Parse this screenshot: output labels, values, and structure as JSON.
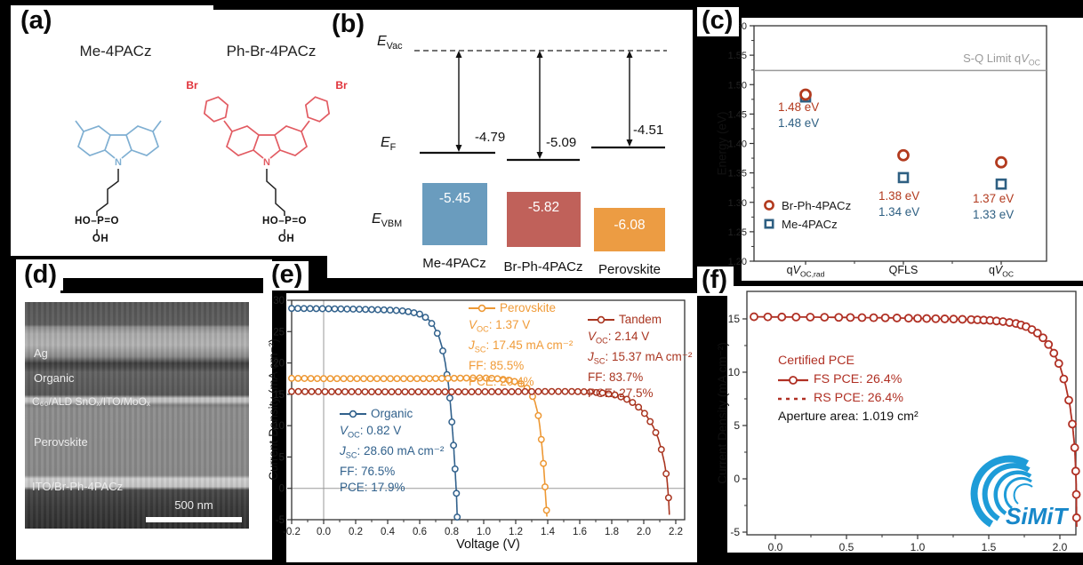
{
  "panel_labels": {
    "a": "(a)",
    "b": "(b)",
    "c": "(c)",
    "d": "(d)",
    "e": "(e)",
    "f": "(f)"
  },
  "panel_a": {
    "molecule_1_name": "Me-4PACz",
    "molecule_2_name": "Ph-Br-4PACz",
    "molecule_1_color": "#7FAFD2",
    "molecule_2_color": "#E25B62",
    "br_label": "Br",
    "n_label": "N",
    "phosphonic_top": "HO–P=O",
    "phosphonic_bottom": "OH"
  },
  "panel_b": {
    "evac_label": {
      "sym": "E",
      "sub": "Vac"
    },
    "ef_label": {
      "sym": "E",
      "sub": "F"
    },
    "evbm_label": {
      "sym": "E",
      "sub": "VBM"
    },
    "levels": [
      {
        "name": "Me-4PACz",
        "ef": "-4.79",
        "evbm": "-5.45",
        "color": "#6A9CBE"
      },
      {
        "name": "Br-Ph-4PACz",
        "ef": "-5.09",
        "evbm": "-5.82",
        "color": "#C0615A"
      },
      {
        "name": "Perovskite",
        "ef": "-4.51",
        "evbm": "-6.08",
        "color": "#EC9C43"
      }
    ]
  },
  "panel_d": {
    "layer_labels": [
      "Ag",
      "Organic",
      "C₆₀/ALD SnOₓ/ITO/MoOₓ",
      "Perovskite",
      "ITO/Br-Ph-4PACz"
    ],
    "scale_bar_label": "500 nm"
  },
  "chart_data": [
    {
      "id": "c",
      "type": "scatter",
      "ylabel": "Energy (eV)",
      "ylim": [
        1.2,
        1.6
      ],
      "yticks": [
        1.2,
        1.25,
        1.3,
        1.35,
        1.4,
        1.45,
        1.5,
        1.55,
        1.6
      ],
      "categories": [
        {
          "pre": "q",
          "sym": "V",
          "sub": "OC,rad"
        },
        {
          "pre": "QFLS"
        },
        {
          "pre": "q",
          "sym": "V",
          "sub": "OC"
        }
      ],
      "ref_line": {
        "value": 1.524,
        "color": "#9A9A9A",
        "label": {
          "pre": "S-Q Limit q",
          "sym": "V",
          "sub": "OC"
        }
      },
      "series": [
        {
          "name": "Me-4PACz",
          "marker": "square",
          "color": "#2E5F82",
          "values": [
            1.48,
            1.34,
            1.33
          ],
          "plot_values": [
            1.479,
            1.342,
            1.331
          ]
        },
        {
          "name": "Br-Ph-4PACz",
          "marker": "circle",
          "color": "#B23A1E",
          "values": [
            1.48,
            1.38,
            1.37
          ],
          "plot_values": [
            1.483,
            1.38,
            1.368
          ]
        }
      ],
      "annotations": [
        {
          "red": "1.48 eV",
          "blue": "1.48 eV"
        },
        {
          "red": "1.38 eV",
          "blue": "1.34 eV"
        },
        {
          "red": "1.37 eV",
          "blue": "1.33 eV"
        }
      ],
      "legend_position": "lower left",
      "grid": false
    },
    {
      "id": "e",
      "type": "line",
      "xlabel": "Voltage (V)",
      "ylabel": "Current Density (mA cm⁻²)",
      "xlim": [
        -0.2,
        2.2
      ],
      "ylim": [
        -5,
        30
      ],
      "xticks": [
        -0.2,
        0.0,
        0.2,
        0.4,
        0.6,
        0.8,
        1.0,
        1.2,
        1.4,
        1.6,
        1.8,
        2.0,
        2.2
      ],
      "yticks": [
        -5,
        0,
        5,
        10,
        15,
        20,
        25,
        30
      ],
      "series": [
        {
          "name": "Organic",
          "color": "#31618C",
          "stats": [
            {
              "sym": "V",
              "sub": "OC",
              "rest": ": 0.82 V"
            },
            {
              "sym": "J",
              "sub": "SC",
              "rest": ": 28.60 mA cm⁻²"
            },
            {
              "rest": "FF: 76.5%"
            },
            {
              "rest": "PCE: 17.9%"
            }
          ],
          "points": [
            [
              -0.2,
              28.7
            ],
            [
              -0.1,
              28.68
            ],
            [
              0,
              28.65
            ],
            [
              0.1,
              28.62
            ],
            [
              0.2,
              28.58
            ],
            [
              0.3,
              28.52
            ],
            [
              0.4,
              28.45
            ],
            [
              0.5,
              28.3
            ],
            [
              0.55,
              28.1
            ],
            [
              0.6,
              27.8
            ],
            [
              0.63,
              27.4
            ],
            [
              0.66,
              26.8
            ],
            [
              0.69,
              25.8
            ],
            [
              0.72,
              24.2
            ],
            [
              0.74,
              22.5
            ],
            [
              0.76,
              20.0
            ],
            [
              0.78,
              16.5
            ],
            [
              0.79,
              14.0
            ],
            [
              0.8,
              11.0
            ],
            [
              0.81,
              7.5
            ],
            [
              0.82,
              3.5
            ],
            [
              0.83,
              -1.0
            ],
            [
              0.835,
              -5.0
            ]
          ]
        },
        {
          "name": "Perovskite",
          "color": "#ED9834",
          "stats": [
            {
              "sym": "V",
              "sub": "OC",
              "rest": ": 1.37 V"
            },
            {
              "sym": "J",
              "sub": "SC",
              "rest": ": 17.45 mA cm⁻²"
            },
            {
              "rest": "FF: 85.5%"
            },
            {
              "rest": "PCE: 20.4%"
            }
          ],
          "points": [
            [
              -0.2,
              17.55
            ],
            [
              0,
              17.5
            ],
            [
              0.2,
              17.5
            ],
            [
              0.4,
              17.5
            ],
            [
              0.6,
              17.5
            ],
            [
              0.7,
              17.52
            ],
            [
              0.8,
              17.55
            ],
            [
              0.9,
              17.6
            ],
            [
              1.0,
              17.6
            ],
            [
              1.05,
              17.55
            ],
            [
              1.1,
              17.45
            ],
            [
              1.15,
              17.3
            ],
            [
              1.2,
              17.0
            ],
            [
              1.24,
              16.6
            ],
            [
              1.27,
              16.0
            ],
            [
              1.3,
              15.0
            ],
            [
              1.32,
              13.8
            ],
            [
              1.34,
              11.8
            ],
            [
              1.35,
              10.0
            ],
            [
              1.36,
              7.8
            ],
            [
              1.37,
              5.0
            ],
            [
              1.38,
              1.5
            ],
            [
              1.39,
              -2.5
            ],
            [
              1.395,
              -4.5
            ]
          ]
        },
        {
          "name": "Tandem",
          "color": "#A93520",
          "stats": [
            {
              "sym": "V",
              "sub": "OC",
              "rest": ": 2.14 V"
            },
            {
              "sym": "J",
              "sub": "SC",
              "rest": ": 15.37 mA cm⁻²"
            },
            {
              "rest": "FF: 83.7%"
            },
            {
              "rest": "PCE: 27.5%"
            }
          ],
          "points": [
            [
              -0.2,
              15.45
            ],
            [
              0,
              15.42
            ],
            [
              0.3,
              15.4
            ],
            [
              0.6,
              15.4
            ],
            [
              0.9,
              15.4
            ],
            [
              1.2,
              15.42
            ],
            [
              1.4,
              15.45
            ],
            [
              1.55,
              15.45
            ],
            [
              1.65,
              15.4
            ],
            [
              1.75,
              15.2
            ],
            [
              1.82,
              14.9
            ],
            [
              1.88,
              14.4
            ],
            [
              1.93,
              13.7
            ],
            [
              1.98,
              12.7
            ],
            [
              2.02,
              11.5
            ],
            [
              2.06,
              9.8
            ],
            [
              2.09,
              8.0
            ],
            [
              2.11,
              6.2
            ],
            [
              2.13,
              4.0
            ],
            [
              2.145,
              1.5
            ],
            [
              2.155,
              -1.5
            ],
            [
              2.16,
              -4.2
            ]
          ]
        }
      ],
      "grid": false
    },
    {
      "id": "f",
      "type": "line",
      "ylabel": "Current Density (mA cm⁻²)",
      "xlim": [
        -0.2,
        2.1
      ],
      "ylim": [
        -5,
        17.5
      ],
      "xticks": [
        0.0,
        0.5,
        1.0,
        1.5,
        2.0
      ],
      "yticks": [
        -5,
        0,
        5,
        10,
        15
      ],
      "legend_title": "Certified PCE",
      "legend": [
        {
          "style": "solid-circle",
          "label": "FS PCE: 26.4%"
        },
        {
          "style": "dashed",
          "label": "RS PCE: 26.4%"
        }
      ],
      "note": "Aperture area: 1.019 cm²",
      "logo_text": "SiMiT",
      "series": [
        {
          "name": "FS",
          "color": "#B03024",
          "points": [
            [
              -0.15,
              15.2
            ],
            [
              0,
              15.18
            ],
            [
              0.2,
              15.17
            ],
            [
              0.4,
              15.15
            ],
            [
              0.6,
              15.12
            ],
            [
              0.8,
              15.1
            ],
            [
              1.0,
              15.05
            ],
            [
              1.2,
              15.0
            ],
            [
              1.35,
              14.95
            ],
            [
              1.5,
              14.87
            ],
            [
              1.6,
              14.75
            ],
            [
              1.7,
              14.55
            ],
            [
              1.78,
              14.2
            ],
            [
              1.85,
              13.6
            ],
            [
              1.9,
              13.0
            ],
            [
              1.95,
              12.0
            ],
            [
              2.0,
              10.6
            ],
            [
              2.04,
              8.8
            ],
            [
              2.07,
              6.9
            ],
            [
              2.09,
              4.9
            ],
            [
              2.105,
              2.8
            ],
            [
              2.115,
              -0.5
            ],
            [
              2.118,
              -4.5
            ]
          ]
        }
      ],
      "grid": false
    }
  ]
}
